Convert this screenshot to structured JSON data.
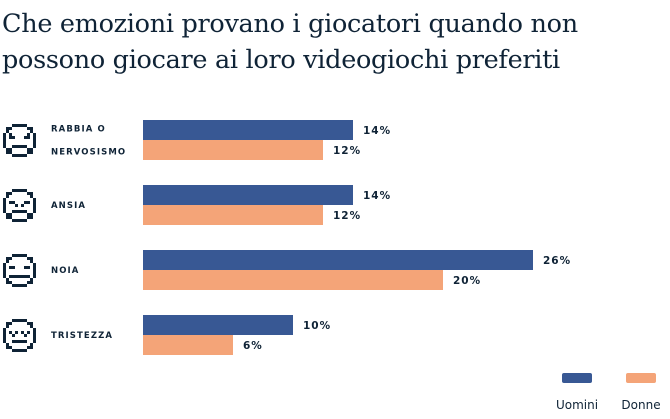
{
  "chart_data": {
    "type": "bar",
    "orientation": "horizontal",
    "title": "Che emozioni provano i giocatori quando non possono giocare ai loro videogiochi preferiti",
    "categories": [
      {
        "label_lines": [
          "RABBIA O",
          "NERVOSISMO"
        ],
        "icon": "angry-face-icon"
      },
      {
        "label_lines": [
          "ANSIA"
        ],
        "icon": "anxious-face-icon"
      },
      {
        "label_lines": [
          "NOIA"
        ],
        "icon": "neutral-face-icon"
      },
      {
        "label_lines": [
          "TRISTEZZA"
        ],
        "icon": "sad-face-icon"
      }
    ],
    "series": [
      {
        "name": "Uomini",
        "color": "#385894",
        "values": [
          14,
          14,
          26,
          10
        ],
        "labels": [
          "14%",
          "14%",
          "26%",
          "10%"
        ]
      },
      {
        "name": "Donne",
        "color": "#f4a478",
        "values": [
          12,
          12,
          20,
          6
        ],
        "labels": [
          "12%",
          "12%",
          "20%",
          "6%"
        ]
      }
    ],
    "unit": "%",
    "legend_position": "bottom-right",
    "grid": false
  }
}
